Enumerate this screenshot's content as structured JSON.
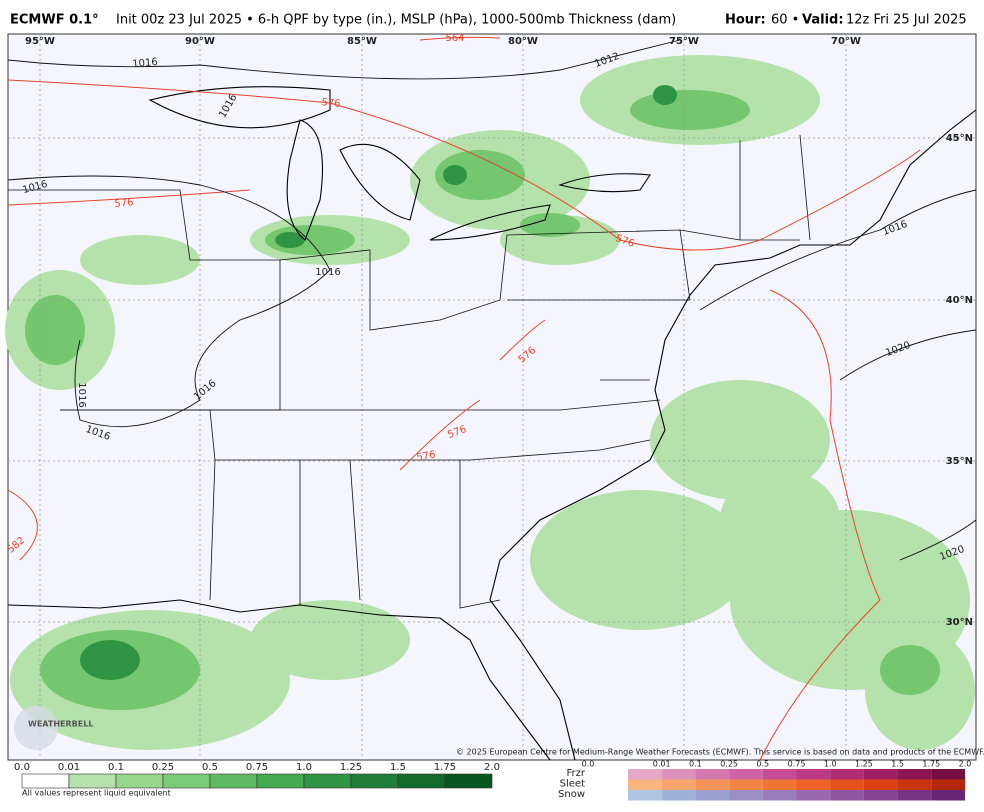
{
  "header": {
    "model": "ECMWF 0.1°",
    "init": "Init 00z 23 Jul 2025 • 6-h QPF by type (in.), MSLP (hPa), 1000-500mb Thickness (dam)",
    "hour_label": "Hour:",
    "hour": "60 •",
    "valid_label": "Valid:",
    "valid": "12z Fri 25 Jul 2025"
  },
  "map": {
    "longitudes": [
      "95°W",
      "90°W",
      "85°W",
      "80°W",
      "75°W",
      "70°W"
    ],
    "latitudes": [
      "45°N",
      "40°N",
      "35°N",
      "30°N"
    ],
    "thickness_labels": [
      "564",
      "576",
      "576",
      "576",
      "576",
      "576",
      "576",
      "582"
    ],
    "pressure_labels": [
      "1016",
      "1016",
      "1016",
      "1016",
      "1016",
      "1016",
      "1016",
      "1012",
      "1016",
      "1020",
      "1020"
    ],
    "logo": "WEATHERBELL",
    "copyright": "© 2025 European Centre for Medium-Range Weather Forecasts (ECMWF). This service is based on data and products of the ECMWF."
  },
  "legend": {
    "rain_ticks": [
      "0.0",
      "0.01",
      "0.1",
      "0.25",
      "0.5",
      "0.75",
      "1.0",
      "1.25",
      "1.5",
      "1.75",
      "2.0"
    ],
    "note": "All values represent liquid equivalent",
    "types": [
      "Frzr",
      "Sleet",
      "Snow"
    ],
    "type_ticks": [
      "0.0",
      "0.01",
      "0.1",
      "0.25",
      "0.5",
      "0.75",
      "1.0",
      "1.25",
      "1.5",
      "1.75",
      "2.0"
    ]
  }
}
